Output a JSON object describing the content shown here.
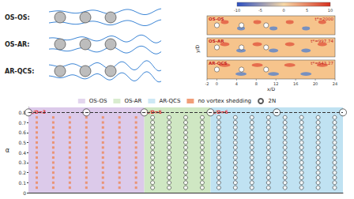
{
  "schematic": {
    "rows": [
      {
        "label": "OS-OS:"
      },
      {
        "label": "OS-AR:"
      },
      {
        "label": "AR-QCS:"
      }
    ]
  },
  "snapshots": {
    "x_label": "x/D",
    "y_label": "y/D",
    "xlim": [
      -2,
      24
    ],
    "xticks": [
      -2,
      0,
      4,
      8,
      12,
      16,
      20,
      24
    ],
    "cylinders": [
      0,
      5,
      10
    ],
    "colorbar": {
      "ticks": [
        -10,
        -5,
        0,
        5,
        10
      ]
    },
    "panels": [
      {
        "label": "OS-OS",
        "time": "t*=2000"
      },
      {
        "label": "OS-AR",
        "time": "t*=997.74"
      },
      {
        "label": "AR-QCS",
        "time": "t*=643.27"
      }
    ]
  },
  "chart_data": {
    "type": "scatter",
    "y_label": "α",
    "xlim": [
      0.5,
      19.5
    ],
    "ylim": [
      0,
      0.85
    ],
    "yticks": [
      0,
      0.1,
      0.2,
      0.3,
      0.4,
      0.5,
      0.6,
      0.7,
      0.8
    ],
    "tick_labels": "y",
    "legend": "top",
    "reference_line": {
      "y": 0.8,
      "line_style": "dashed"
    },
    "markers": {
      "marker": "open_circle",
      "points": [
        [
          0.5,
          0.8
        ],
        [
          4,
          0.8
        ],
        [
          7.5,
          0.8
        ],
        [
          11.5,
          0.8
        ],
        [
          15.5,
          0.8
        ],
        [
          19.5,
          0.8
        ]
      ]
    },
    "series": [
      {
        "name": "OS-OS",
        "type": "region",
        "color": "#dccaea",
        "x_range": [
          0.5,
          7.5
        ],
        "label": "L/D=3"
      },
      {
        "name": "OS-AR",
        "type": "region",
        "color": "#cfe7c3",
        "x_range": [
          7.5,
          11.5
        ],
        "label": "L/D=5"
      },
      {
        "name": "AR-QCS",
        "type": "region",
        "color": "#c0e2f2",
        "x_range": [
          11.5,
          19.5
        ],
        "label": "L/D=6"
      },
      {
        "name": "no vortex shedding",
        "type": "scatter",
        "marker": "square",
        "color": "#ee8656",
        "points": [
          [
            1,
            0.05
          ],
          [
            1,
            0.1
          ],
          [
            1,
            0.15
          ],
          [
            1,
            0.2
          ],
          [
            1,
            0.25
          ],
          [
            1,
            0.3
          ],
          [
            1,
            0.35
          ],
          [
            1,
            0.4
          ],
          [
            1,
            0.45
          ],
          [
            1,
            0.5
          ],
          [
            1,
            0.55
          ],
          [
            1,
            0.6
          ],
          [
            1,
            0.65
          ],
          [
            1,
            0.7
          ],
          [
            1,
            0.75
          ],
          [
            2,
            0.05
          ],
          [
            2,
            0.1
          ],
          [
            2,
            0.15
          ],
          [
            2,
            0.2
          ],
          [
            2,
            0.25
          ],
          [
            2,
            0.3
          ],
          [
            2,
            0.35
          ],
          [
            2,
            0.4
          ],
          [
            2,
            0.45
          ],
          [
            2,
            0.5
          ],
          [
            2,
            0.55
          ],
          [
            2,
            0.6
          ],
          [
            2,
            0.65
          ],
          [
            2,
            0.7
          ],
          [
            2,
            0.75
          ],
          [
            3,
            0.05
          ],
          [
            3,
            0.1
          ],
          [
            3,
            0.15
          ],
          [
            3,
            0.2
          ],
          [
            3,
            0.25
          ],
          [
            3,
            0.3
          ],
          [
            3,
            0.35
          ],
          [
            3,
            0.4
          ],
          [
            3,
            0.45
          ],
          [
            3,
            0.5
          ],
          [
            3,
            0.55
          ],
          [
            3,
            0.6
          ],
          [
            3,
            0.65
          ],
          [
            3,
            0.7
          ],
          [
            3,
            0.75
          ],
          [
            4,
            0.05
          ],
          [
            4,
            0.1
          ],
          [
            4,
            0.15
          ],
          [
            4,
            0.2
          ],
          [
            4,
            0.25
          ],
          [
            4,
            0.3
          ],
          [
            4,
            0.35
          ],
          [
            4,
            0.4
          ],
          [
            4,
            0.45
          ],
          [
            4,
            0.5
          ],
          [
            4,
            0.55
          ],
          [
            4,
            0.6
          ],
          [
            4,
            0.65
          ],
          [
            4,
            0.7
          ],
          [
            4,
            0.75
          ],
          [
            5,
            0.05
          ],
          [
            5,
            0.1
          ],
          [
            5,
            0.15
          ],
          [
            5,
            0.2
          ],
          [
            5,
            0.25
          ],
          [
            5,
            0.3
          ],
          [
            5,
            0.35
          ],
          [
            5,
            0.4
          ],
          [
            5,
            0.45
          ],
          [
            5,
            0.5
          ],
          [
            5,
            0.55
          ],
          [
            5,
            0.6
          ],
          [
            5,
            0.65
          ],
          [
            5,
            0.7
          ],
          [
            5,
            0.75
          ],
          [
            6,
            0.05
          ],
          [
            6,
            0.1
          ],
          [
            6,
            0.15
          ],
          [
            6,
            0.2
          ],
          [
            6,
            0.25
          ],
          [
            6,
            0.3
          ],
          [
            6,
            0.35
          ],
          [
            6,
            0.4
          ],
          [
            6,
            0.45
          ],
          [
            6,
            0.5
          ],
          [
            6,
            0.55
          ],
          [
            6,
            0.6
          ],
          [
            6,
            0.65
          ],
          [
            6,
            0.7
          ],
          [
            6,
            0.75
          ],
          [
            7,
            0.05
          ],
          [
            7,
            0.1
          ],
          [
            7,
            0.15
          ],
          [
            7,
            0.2
          ],
          [
            7,
            0.25
          ],
          [
            7,
            0.3
          ],
          [
            7,
            0.35
          ],
          [
            7,
            0.4
          ],
          [
            7,
            0.45
          ],
          [
            7,
            0.5
          ],
          [
            7,
            0.55
          ],
          [
            7,
            0.6
          ],
          [
            7,
            0.65
          ],
          [
            7,
            0.7
          ],
          [
            7,
            0.75
          ]
        ]
      },
      {
        "name": "2N",
        "type": "scatter",
        "marker": "open_circle",
        "color": "#333333",
        "points": [
          [
            8,
            0.05
          ],
          [
            8,
            0.1
          ],
          [
            8,
            0.15
          ],
          [
            8,
            0.2
          ],
          [
            8,
            0.25
          ],
          [
            8,
            0.3
          ],
          [
            8,
            0.35
          ],
          [
            8,
            0.4
          ],
          [
            8,
            0.45
          ],
          [
            8,
            0.5
          ],
          [
            8,
            0.55
          ],
          [
            8,
            0.6
          ],
          [
            8,
            0.65
          ],
          [
            8,
            0.7
          ],
          [
            8,
            0.75
          ],
          [
            9,
            0.05
          ],
          [
            9,
            0.1
          ],
          [
            9,
            0.15
          ],
          [
            9,
            0.2
          ],
          [
            9,
            0.25
          ],
          [
            9,
            0.3
          ],
          [
            9,
            0.35
          ],
          [
            9,
            0.4
          ],
          [
            9,
            0.45
          ],
          [
            9,
            0.5
          ],
          [
            9,
            0.55
          ],
          [
            9,
            0.6
          ],
          [
            9,
            0.65
          ],
          [
            9,
            0.7
          ],
          [
            9,
            0.75
          ],
          [
            10,
            0.05
          ],
          [
            10,
            0.1
          ],
          [
            10,
            0.15
          ],
          [
            10,
            0.2
          ],
          [
            10,
            0.25
          ],
          [
            10,
            0.3
          ],
          [
            10,
            0.35
          ],
          [
            10,
            0.4
          ],
          [
            10,
            0.45
          ],
          [
            10,
            0.5
          ],
          [
            10,
            0.55
          ],
          [
            10,
            0.6
          ],
          [
            10,
            0.65
          ],
          [
            10,
            0.7
          ],
          [
            10,
            0.75
          ],
          [
            11,
            0.05
          ],
          [
            11,
            0.1
          ],
          [
            11,
            0.15
          ],
          [
            11,
            0.2
          ],
          [
            11,
            0.25
          ],
          [
            11,
            0.3
          ],
          [
            11,
            0.35
          ],
          [
            11,
            0.4
          ],
          [
            11,
            0.45
          ],
          [
            11,
            0.5
          ],
          [
            11,
            0.55
          ],
          [
            11,
            0.6
          ],
          [
            11,
            0.65
          ],
          [
            11,
            0.7
          ],
          [
            11,
            0.75
          ],
          [
            12,
            0.05
          ],
          [
            12,
            0.1
          ],
          [
            12,
            0.15
          ],
          [
            12,
            0.2
          ],
          [
            12,
            0.25
          ],
          [
            12,
            0.3
          ],
          [
            12,
            0.35
          ],
          [
            12,
            0.4
          ],
          [
            12,
            0.45
          ],
          [
            12,
            0.5
          ],
          [
            12,
            0.55
          ],
          [
            12,
            0.6
          ],
          [
            12,
            0.65
          ],
          [
            12,
            0.7
          ],
          [
            12,
            0.75
          ],
          [
            13,
            0.05
          ],
          [
            13,
            0.1
          ],
          [
            13,
            0.15
          ],
          [
            13,
            0.2
          ],
          [
            13,
            0.25
          ],
          [
            13,
            0.3
          ],
          [
            13,
            0.35
          ],
          [
            13,
            0.4
          ],
          [
            13,
            0.45
          ],
          [
            13,
            0.5
          ],
          [
            13,
            0.55
          ],
          [
            13,
            0.6
          ],
          [
            13,
            0.65
          ],
          [
            13,
            0.7
          ],
          [
            13,
            0.75
          ],
          [
            14,
            0.05
          ],
          [
            14,
            0.1
          ],
          [
            14,
            0.15
          ],
          [
            14,
            0.2
          ],
          [
            14,
            0.25
          ],
          [
            14,
            0.3
          ],
          [
            14,
            0.35
          ],
          [
            14,
            0.4
          ],
          [
            14,
            0.45
          ],
          [
            14,
            0.5
          ],
          [
            14,
            0.55
          ],
          [
            14,
            0.6
          ],
          [
            14,
            0.65
          ],
          [
            14,
            0.7
          ],
          [
            14,
            0.75
          ],
          [
            15,
            0.05
          ],
          [
            15,
            0.1
          ],
          [
            15,
            0.15
          ],
          [
            15,
            0.2
          ],
          [
            15,
            0.25
          ],
          [
            15,
            0.3
          ],
          [
            15,
            0.35
          ],
          [
            15,
            0.4
          ],
          [
            15,
            0.45
          ],
          [
            15,
            0.5
          ],
          [
            15,
            0.55
          ],
          [
            15,
            0.6
          ],
          [
            15,
            0.65
          ],
          [
            15,
            0.7
          ],
          [
            15,
            0.75
          ],
          [
            16,
            0.05
          ],
          [
            16,
            0.1
          ],
          [
            16,
            0.15
          ],
          [
            16,
            0.2
          ],
          [
            16,
            0.25
          ],
          [
            16,
            0.3
          ],
          [
            16,
            0.35
          ],
          [
            16,
            0.4
          ],
          [
            16,
            0.45
          ],
          [
            16,
            0.5
          ],
          [
            16,
            0.55
          ],
          [
            16,
            0.6
          ],
          [
            16,
            0.65
          ],
          [
            16,
            0.7
          ],
          [
            16,
            0.75
          ],
          [
            17,
            0.05
          ],
          [
            17,
            0.1
          ],
          [
            17,
            0.15
          ],
          [
            17,
            0.2
          ],
          [
            17,
            0.25
          ],
          [
            17,
            0.3
          ],
          [
            17,
            0.35
          ],
          [
            17,
            0.4
          ],
          [
            17,
            0.45
          ],
          [
            17,
            0.5
          ],
          [
            17,
            0.55
          ],
          [
            17,
            0.6
          ],
          [
            17,
            0.65
          ],
          [
            17,
            0.7
          ],
          [
            17,
            0.75
          ],
          [
            18,
            0.05
          ],
          [
            18,
            0.1
          ],
          [
            18,
            0.15
          ],
          [
            18,
            0.2
          ],
          [
            18,
            0.25
          ],
          [
            18,
            0.3
          ],
          [
            18,
            0.35
          ],
          [
            18,
            0.4
          ],
          [
            18,
            0.45
          ],
          [
            18,
            0.5
          ],
          [
            18,
            0.55
          ],
          [
            18,
            0.6
          ],
          [
            18,
            0.65
          ],
          [
            18,
            0.7
          ],
          [
            18,
            0.75
          ],
          [
            19,
            0.05
          ],
          [
            19,
            0.1
          ],
          [
            19,
            0.15
          ],
          [
            19,
            0.2
          ],
          [
            19,
            0.25
          ],
          [
            19,
            0.3
          ],
          [
            19,
            0.35
          ],
          [
            19,
            0.4
          ],
          [
            19,
            0.45
          ],
          [
            19,
            0.5
          ],
          [
            19,
            0.55
          ],
          [
            19,
            0.6
          ],
          [
            19,
            0.65
          ],
          [
            19,
            0.7
          ],
          [
            19,
            0.75
          ]
        ]
      }
    ]
  }
}
